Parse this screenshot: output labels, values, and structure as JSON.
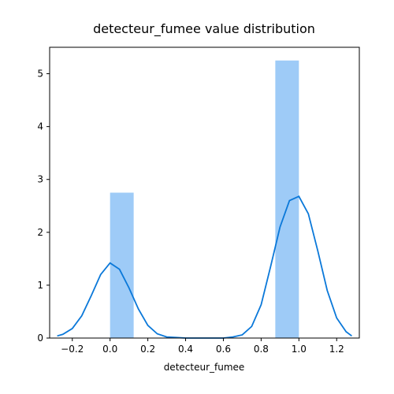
{
  "chart_data": {
    "type": "bar",
    "title": "detecteur_fumee value distribution",
    "xlabel": "detecteur_fumee",
    "ylabel": "",
    "xlim": [
      -0.32,
      1.32
    ],
    "ylim": [
      0,
      5.5
    ],
    "x_ticks": [
      -0.2,
      0.0,
      0.2,
      0.4,
      0.6,
      0.8,
      1.0,
      1.2
    ],
    "x_tick_labels": [
      "−0.2",
      "0.0",
      "0.2",
      "0.4",
      "0.6",
      "0.8",
      "1.0",
      "1.2"
    ],
    "y_ticks": [
      0,
      1,
      2,
      3,
      4,
      5
    ],
    "y_tick_labels": [
      "0",
      "1",
      "2",
      "3",
      "4",
      "5"
    ],
    "grid": false,
    "bars": [
      {
        "x0": 0.0,
        "x1": 0.125,
        "value": 2.75
      },
      {
        "x0": 0.875,
        "x1": 1.0,
        "value": 5.25
      }
    ],
    "kde": {
      "x": [
        -0.28,
        -0.25,
        -0.2,
        -0.15,
        -0.1,
        -0.05,
        0.0,
        0.05,
        0.1,
        0.15,
        0.2,
        0.25,
        0.3,
        0.35,
        0.4,
        0.5,
        0.6,
        0.65,
        0.7,
        0.75,
        0.8,
        0.85,
        0.9,
        0.95,
        1.0,
        1.05,
        1.1,
        1.15,
        1.2,
        1.25,
        1.28
      ],
      "y": [
        0.04,
        0.07,
        0.18,
        0.42,
        0.8,
        1.2,
        1.42,
        1.3,
        0.95,
        0.55,
        0.24,
        0.08,
        0.02,
        0.01,
        0.0,
        0.0,
        0.0,
        0.02,
        0.06,
        0.22,
        0.63,
        1.35,
        2.1,
        2.6,
        2.68,
        2.35,
        1.65,
        0.9,
        0.38,
        0.12,
        0.04
      ]
    },
    "colors": {
      "bar": "#9ecbf7",
      "kde": "#0a78d9",
      "axis": "#000000"
    }
  }
}
